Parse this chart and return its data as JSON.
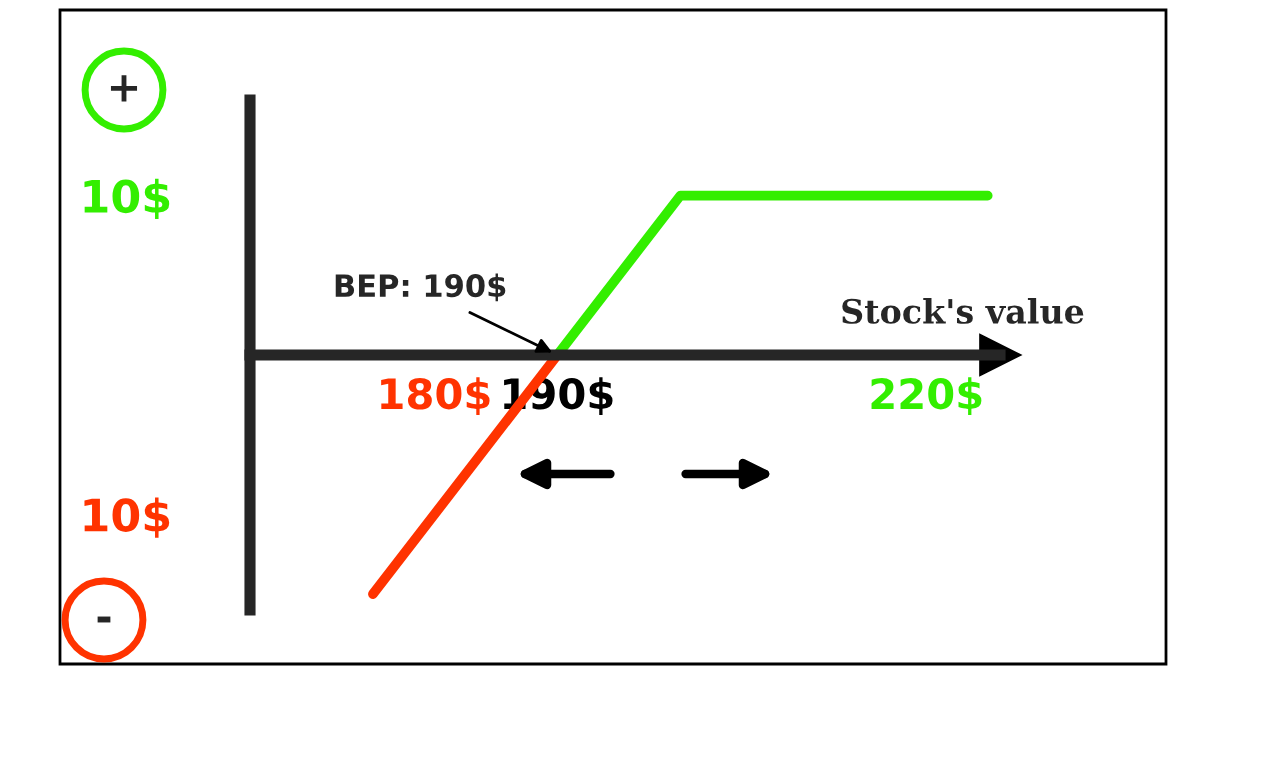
{
  "chart_data": {
    "type": "line",
    "xlabel": "Stock's value",
    "series": [
      {
        "color": "#ff3300",
        "x": [
          175,
          190
        ],
        "values": [
          -15,
          0
        ]
      },
      {
        "color": "#33ee00",
        "x": [
          190,
          200,
          225
        ],
        "values": [
          0,
          10,
          10
        ]
      }
    ],
    "xlim": [
      165,
      226
    ],
    "ylim": [
      -16,
      16
    ],
    "xticks": [
      {
        "value": 180,
        "label": "180$"
      },
      {
        "value": 190,
        "label": "190$"
      },
      {
        "value": 220,
        "label": "220$"
      }
    ],
    "yticks": [
      {
        "value": 10,
        "label": "10$"
      },
      {
        "value": -10,
        "label": "10$"
      }
    ],
    "annotations": [
      {
        "text": "BEP: 190$",
        "x": 190,
        "y": 0
      },
      "+",
      "-"
    ],
    "grid": false,
    "legend": false,
    "marker": "none",
    "line_style": "solid"
  }
}
